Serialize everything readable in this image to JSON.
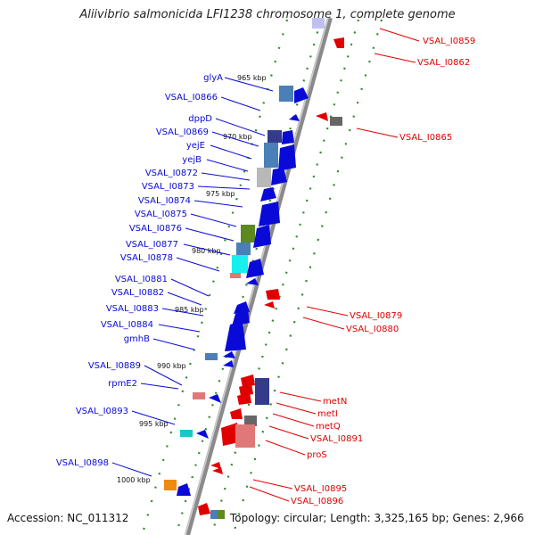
{
  "title": "Aliivibrio salmonicida LFI1238 chromosome 1, complete genome",
  "accession": "Accession: NC_011312",
  "topology": "Topology: circular; Length: 3,325,165 bp; Genes: 2,966",
  "colors": {
    "forward": "#0a0ad8",
    "reverse": "#e00000",
    "backbone": "#8a8a8a",
    "tick": "#2e8b2e"
  },
  "ticks": [
    "965 kbp",
    "970 kbp",
    "975 kbp",
    "980 kbp",
    "985 kbp",
    "990 kbp",
    "995 kbp",
    "1000 kbp"
  ],
  "left_labels": [
    "glyA",
    "VSAL_I0866",
    "dppD",
    "VSAL_I0869",
    "yejE",
    "yejB",
    "VSAL_I0872",
    "VSAL_I0873",
    "VSAL_I0874",
    "VSAL_I0875",
    "VSAL_I0876",
    "VSAL_I0877",
    "VSAL_I0878",
    "VSAL_I0881",
    "VSAL_I0882",
    "VSAL_I0883",
    "VSAL_I0884",
    "gmhB",
    "VSAL_I0889",
    "rpmE2",
    "VSAL_I0893",
    "VSAL_I0898"
  ],
  "right_labels": [
    "VSAL_I0859",
    "VSAL_I0862",
    "VSAL_I0865",
    "VSAL_I0879",
    "VSAL_I0880",
    "metN",
    "metI",
    "metQ",
    "VSAL_I0891",
    "proS",
    "VSAL_I0895",
    "VSAL_I0896"
  ]
}
